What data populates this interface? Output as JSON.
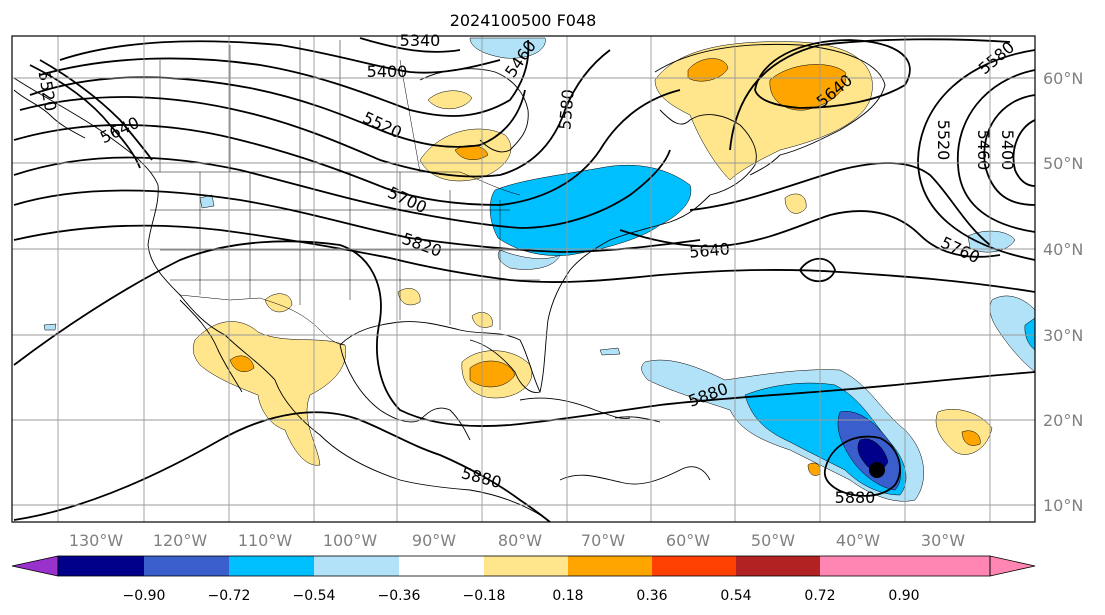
{
  "title": "2024100500 F048",
  "lon_ticks": [
    "130°W",
    "120°W",
    "110°W",
    "100°W",
    "90°W",
    "80°W",
    "70°W",
    "60°W",
    "50°W",
    "40°W",
    "30°W"
  ],
  "lat_ticks": [
    "60°N",
    "50°N",
    "40°N",
    "30°N",
    "20°N",
    "10°N"
  ],
  "colorbar": {
    "colors": [
      "#9932cc",
      "#00008b",
      "#3a5fcd",
      "#00bfff",
      "#b2e2f8",
      "#ffffff",
      "#ffe68c",
      "#ffa500",
      "#ff4000",
      "#b22222",
      "#ff85b2"
    ],
    "labels": [
      "−0.90",
      "−0.72",
      "−0.54",
      "−0.36",
      "−0.18",
      "0.18",
      "0.36",
      "0.54",
      "0.72",
      "0.90"
    ]
  },
  "contour_labels": [
    {
      "text": "5340",
      "angle": 0
    },
    {
      "text": "5400",
      "angle": 0
    },
    {
      "text": "5460",
      "angle": -55
    },
    {
      "text": "5520",
      "angle": 25
    },
    {
      "text": "5580",
      "angle": -85
    },
    {
      "text": "5640",
      "angle": -25
    },
    {
      "text": "5700",
      "angle": 25
    },
    {
      "text": "5820",
      "angle": 20
    },
    {
      "text": "5640",
      "angle": -5
    },
    {
      "text": "5760",
      "angle": 25
    },
    {
      "text": "5880",
      "angle": -20
    },
    {
      "text": "5880",
      "angle": 0
    },
    {
      "text": "5880",
      "angle": 15
    },
    {
      "text": "5580",
      "angle": -40
    },
    {
      "text": "5520",
      "angle": 90
    },
    {
      "text": "5460",
      "angle": 90
    },
    {
      "text": "5400",
      "angle": 90
    },
    {
      "text": "5640",
      "angle": -40
    },
    {
      "text": "5520",
      "angle": 80
    }
  ]
}
